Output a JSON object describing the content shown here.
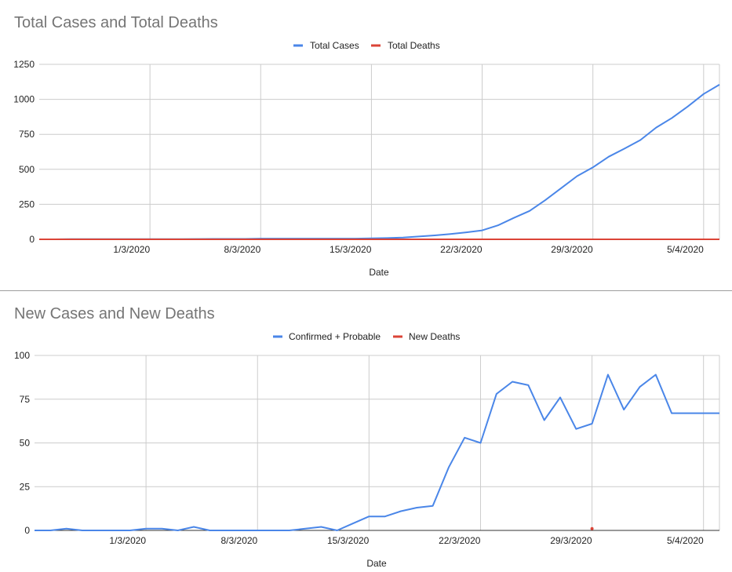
{
  "colors": {
    "cases": "#4a86e8",
    "deaths": "#db4437",
    "grid": "#cccccc",
    "axis": "#333333"
  },
  "chart_data": [
    {
      "type": "line",
      "title": "Total Cases and Total Deaths",
      "xlabel": "Date",
      "ylabel": "",
      "ylim": [
        0,
        1250
      ],
      "yticks": [
        0,
        250,
        500,
        750,
        1000,
        1250
      ],
      "xlim_day": [
        -7,
        36
      ],
      "xticks": [
        {
          "label": "1/3/2020",
          "day": 0
        },
        {
          "label": "8/3/2020",
          "day": 7
        },
        {
          "label": "15/3/2020",
          "day": 14
        },
        {
          "label": "22/3/2020",
          "day": 21
        },
        {
          "label": "29/3/2020",
          "day": 28
        },
        {
          "label": "5/4/2020",
          "day": 35
        }
      ],
      "legend": "top-center",
      "series": [
        {
          "name": "Total Cases",
          "color_key": "cases",
          "x": [
            -7,
            -6,
            -5,
            -4,
            -3,
            -2,
            -1,
            0,
            1,
            2,
            3,
            4,
            5,
            6,
            7,
            8,
            9,
            10,
            11,
            12,
            13,
            14,
            15,
            16,
            17,
            18,
            19,
            20,
            21,
            22,
            23,
            24,
            25,
            26,
            27,
            28,
            29,
            30,
            31,
            32,
            33,
            34,
            35,
            36
          ],
          "y": [
            0,
            0,
            1,
            1,
            1,
            1,
            1,
            1,
            1,
            1,
            2,
            3,
            3,
            3,
            5,
            5,
            5,
            5,
            5,
            5,
            5,
            7,
            9,
            13,
            20,
            28,
            38,
            50,
            64,
            100,
            153,
            203,
            281,
            366,
            451,
            514,
            590,
            648,
            709,
            798,
            867,
            949,
            1038,
            1105
          ]
        },
        {
          "name": "Total Deaths",
          "color_key": "deaths",
          "x": [
            -7,
            36
          ],
          "y": [
            0,
            0
          ]
        }
      ]
    },
    {
      "type": "line",
      "title": "New Cases and New Deaths",
      "xlabel": "Date",
      "ylabel": "",
      "ylim": [
        0,
        100
      ],
      "yticks": [
        0,
        25,
        50,
        75,
        100
      ],
      "xlim_day": [
        -7,
        36
      ],
      "xticks": [
        {
          "label": "1/3/2020",
          "day": 0
        },
        {
          "label": "8/3/2020",
          "day": 7
        },
        {
          "label": "15/3/2020",
          "day": 14
        },
        {
          "label": "22/3/2020",
          "day": 21
        },
        {
          "label": "29/3/2020",
          "day": 28
        },
        {
          "label": "5/4/2020",
          "day": 35
        }
      ],
      "legend": "top-center",
      "series": [
        {
          "name": "Confirmed + Probable",
          "color_key": "cases",
          "x": [
            -7,
            -6,
            -5,
            -4,
            -3,
            -2,
            -1,
            0,
            1,
            2,
            3,
            4,
            5,
            6,
            7,
            8,
            9,
            10,
            11,
            12,
            13,
            14,
            15,
            16,
            17,
            18,
            19,
            20,
            21,
            22,
            23,
            24,
            25,
            26,
            27,
            28,
            29,
            30,
            31,
            32,
            33,
            34,
            35,
            36
          ],
          "y": [
            0,
            0,
            1,
            0,
            0,
            0,
            0,
            1,
            1,
            0,
            2,
            0,
            0,
            0,
            0,
            0,
            0,
            1,
            2,
            0,
            4,
            8,
            8,
            11,
            13,
            14,
            36,
            53,
            50,
            78,
            85,
            83,
            63,
            76,
            58,
            61,
            89,
            69,
            82,
            89,
            67,
            67,
            67,
            67
          ]
        },
        {
          "name": "New Deaths",
          "color_key": "deaths",
          "x": [
            28
          ],
          "y": [
            1
          ]
        }
      ]
    }
  ]
}
